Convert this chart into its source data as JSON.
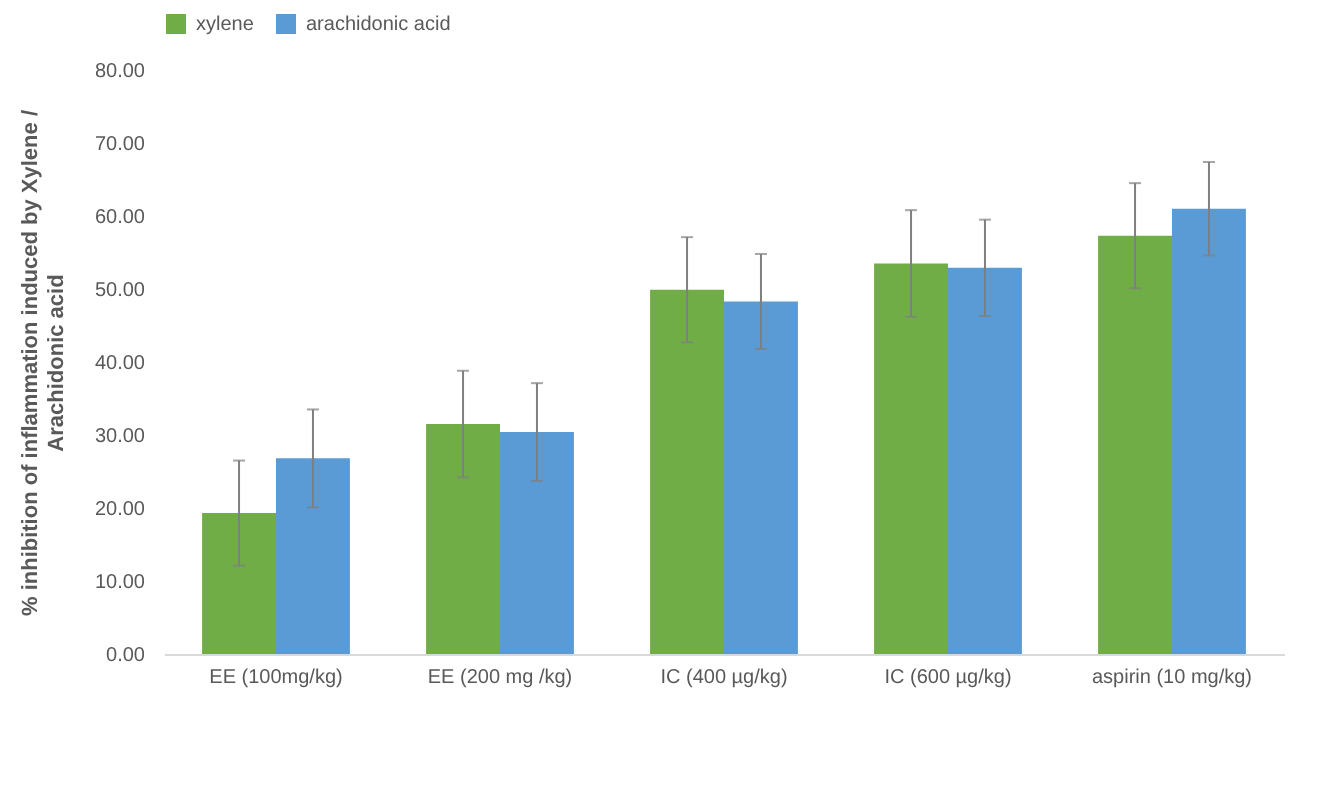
{
  "chart_data": {
    "type": "bar",
    "ylabel": "% inhibition of inflammation induced by Xylene / Arachidonic acid",
    "categories": [
      "EE (100mg/kg)",
      "EE (200 mg /kg)",
      "IC (400 µg/kg)",
      "IC (600 µg/kg)",
      "aspirin (10 mg/kg)"
    ],
    "series": [
      {
        "name": "xylene",
        "color": "#70ad47",
        "values": [
          19.3,
          31.5,
          49.9,
          53.5,
          57.3
        ],
        "errors": [
          7.2,
          7.3,
          7.2,
          7.3,
          7.2
        ]
      },
      {
        "name": "arachidonic acid",
        "color": "#5b9bd5",
        "values": [
          26.8,
          30.4,
          48.3,
          52.9,
          61.0
        ],
        "errors": [
          6.7,
          6.7,
          6.5,
          6.6,
          6.4
        ]
      }
    ],
    "ylim": [
      0,
      80
    ],
    "yticks": [
      {
        "value": 0,
        "label": "0.00"
      },
      {
        "value": 10,
        "label": "10.00"
      },
      {
        "value": 20,
        "label": "20.00"
      },
      {
        "value": 30,
        "label": "30.00"
      },
      {
        "value": 40,
        "label": "40.00"
      },
      {
        "value": 50,
        "label": "50.00"
      },
      {
        "value": 60,
        "label": "60.00"
      },
      {
        "value": 70,
        "label": "70.00"
      },
      {
        "value": 80,
        "label": "80.00"
      }
    ],
    "grid": false,
    "legend": "top"
  }
}
